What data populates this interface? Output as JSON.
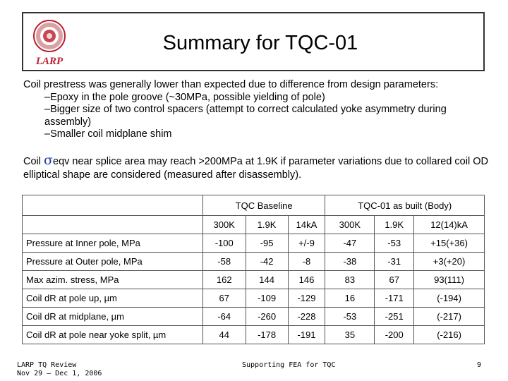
{
  "title": "Summary for TQC-01",
  "logo_text": "LARP",
  "colors": {
    "logo_red": "#b8232f",
    "sigma_blue": "#1f3f9f"
  },
  "para1": {
    "line1": "Coil prestress was generally lower than expected due to difference from design parameters:",
    "bullets": [
      "–Epoxy in the pole groove (~30MPa, possible yielding of pole)",
      "–Bigger size of two control spacers (attempt to correct calculated yoke asymmetry during assembly)",
      "–Smaller coil midplane shim"
    ]
  },
  "para2": {
    "prefix": "Coil ",
    "sigma": "σ",
    "rest": "eqv near splice area may reach >200MPa at 1.9K if parameter variations due to collared coil OD elliptical shape are considered (measured after disassembly)."
  },
  "table": {
    "group_headers": [
      "TQC Baseline",
      "TQC-01 as built (Body)"
    ],
    "columns": [
      "300K",
      "1.9K",
      "14kA",
      "300K",
      "1.9K",
      "12(14)kA"
    ],
    "rows": [
      {
        "label": "Pressure at Inner pole, MPa",
        "values": [
          "-100",
          "-95",
          "+/-9",
          "-47",
          "-53",
          "+15(+36)"
        ]
      },
      {
        "label": "Pressure at Outer pole, MPa",
        "values": [
          "-58",
          "-42",
          "-8",
          "-38",
          "-31",
          "+3(+20)"
        ]
      },
      {
        "label": "Max azim. stress, MPa",
        "values": [
          "162",
          "144",
          "146",
          "83",
          "67",
          "93(111)"
        ]
      },
      {
        "label": "Coil dR at pole up, µm",
        "values": [
          "67",
          "-109",
          "-129",
          "16",
          "-171",
          "(-194)"
        ]
      },
      {
        "label": "Coil dR at midplane, µm",
        "values": [
          "-64",
          "-260",
          "-228",
          "-53",
          "-251",
          "(-217)"
        ]
      },
      {
        "label": "Coil dR at pole near yoke split, µm",
        "values": [
          "44",
          "-178",
          "-191",
          "35",
          "-200",
          "(-216)"
        ]
      }
    ]
  },
  "footer": {
    "left_line1": "LARP TQ Review",
    "left_line2": "Nov 29 – Dec 1, 2006",
    "center": "Supporting FEA for TQC",
    "page": "9"
  }
}
